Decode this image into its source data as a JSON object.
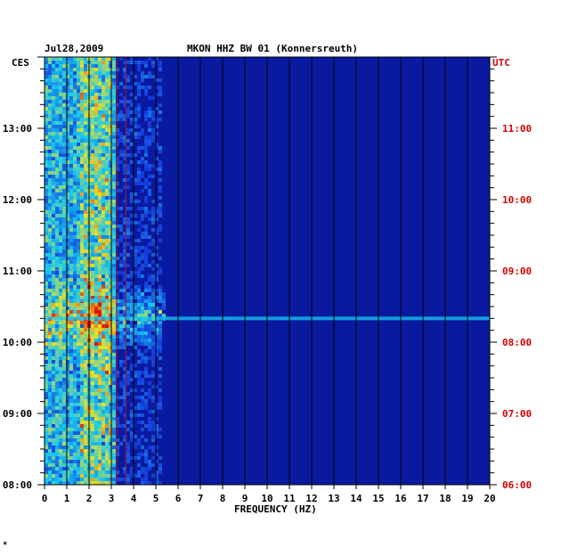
{
  "header": {
    "date": "Jul28,2009",
    "station": "MKON HHZ BW 01 (Konnersreuth)",
    "left_zone": "CES",
    "right_zone": "UTC"
  },
  "footer": {
    "mark": "*"
  },
  "chart_data": {
    "type": "heatmap",
    "title": "MKON HHZ BW 01 (Konnersreuth)",
    "xlabel": "FREQUENCY (HZ)",
    "xlim": [
      0,
      20
    ],
    "x_ticks": [
      "0",
      "1",
      "2",
      "3",
      "4",
      "5",
      "6",
      "7",
      "8",
      "9",
      "10",
      "11",
      "12",
      "13",
      "14",
      "15",
      "16",
      "17",
      "18",
      "19",
      "20"
    ],
    "ylim_hours_ces": [
      8,
      14
    ],
    "y_ticks_left": [
      "13:00",
      "12:00",
      "11:00",
      "10:00",
      "09:00",
      "08:00"
    ],
    "y_ticks_right": [
      "11:00",
      "10:00",
      "09:00",
      "08:00",
      "07:00",
      "06:00"
    ],
    "y_tick_hours": [
      13,
      12,
      11,
      10,
      9,
      8
    ],
    "colors": {
      "low": "#0a1aa0",
      "mid": "#18c8f0",
      "high": "#f0e020",
      "peak": "#e01010",
      "utc_label": "#d40000"
    },
    "events": [
      {
        "time_ces": "10:20",
        "freq_range_hz": [
          0,
          20
        ],
        "note": "broadband line"
      },
      {
        "time_ces": "10:35",
        "freq_range_hz": [
          1.5,
          3.0
        ],
        "note": "strong energy"
      }
    ]
  }
}
